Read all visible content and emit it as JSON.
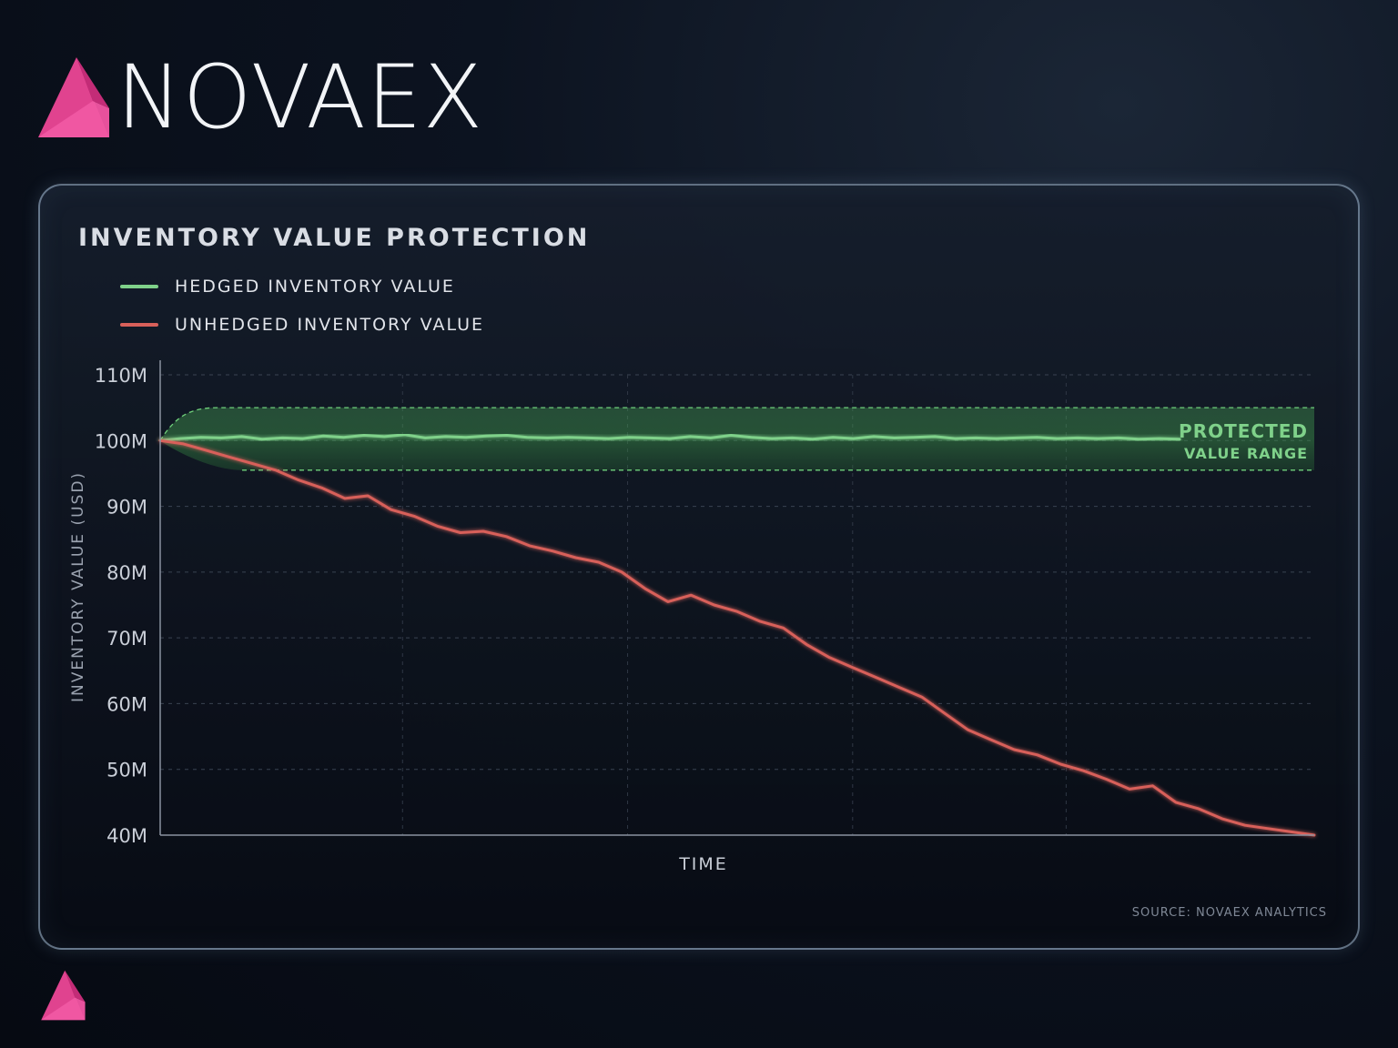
{
  "brand": {
    "name": "NOVAEX",
    "logo_icon": "pink-prism-icon"
  },
  "colors": {
    "hedged": "#7fd18a",
    "unhedged": "#d8605a",
    "band": "#5fb86a",
    "accent": "#e0438f"
  },
  "chart_data": {
    "type": "line",
    "title": "INVENTORY VALUE PROTECTION",
    "xlabel": "TIME",
    "ylabel": "INVENTORY VALUE (USD)",
    "ylim": [
      40,
      110
    ],
    "y_unit": "M",
    "yticks": [
      "110M",
      "100M",
      "90M",
      "80M",
      "70M",
      "60M",
      "50M",
      "40M"
    ],
    "grid": true,
    "legend_position": "top-left",
    "band": {
      "label_line1": "PROTECTED",
      "label_line2": "VALUE RANGE",
      "lower": 95.5,
      "upper": 105
    },
    "series": [
      {
        "name": "HEDGED INVENTORY VALUE",
        "x": [
          0,
          2,
          4,
          6,
          8,
          10,
          12,
          14,
          16,
          18,
          20,
          22,
          24,
          26,
          28,
          30,
          32,
          34,
          36,
          38,
          40,
          42,
          44,
          46,
          48,
          50,
          52,
          54,
          56,
          58,
          60,
          62,
          64,
          66,
          68,
          70,
          72,
          74,
          76,
          78,
          80,
          82,
          84,
          86,
          88,
          90,
          92,
          94,
          96,
          98,
          100
        ],
        "values": [
          100,
          100.3,
          100.5,
          100.4,
          100.6,
          100.2,
          100.4,
          100.3,
          100.7,
          100.5,
          100.8,
          100.6,
          100.9,
          100.4,
          100.6,
          100.5,
          100.7,
          100.8,
          100.5,
          100.4,
          100.5,
          100.4,
          100.3,
          100.5,
          100.4,
          100.3,
          100.6,
          100.4,
          100.8,
          100.5,
          100.3,
          100.4,
          100.2,
          100.5,
          100.3,
          100.6,
          100.4,
          100.5,
          100.6,
          100.3,
          100.4,
          100.3,
          100.4,
          100.5,
          100.3,
          100.4,
          100.3,
          100.4,
          100.2,
          100.3,
          100.2
        ]
      },
      {
        "name": "UNHEDGED INVENTORY VALUE",
        "x": [
          0,
          2,
          4,
          6,
          8,
          10,
          12,
          14,
          16,
          18,
          20,
          22,
          24,
          26,
          28,
          30,
          32,
          34,
          36,
          38,
          40,
          42,
          44,
          46,
          48,
          50,
          52,
          54,
          56,
          58,
          60,
          62,
          64,
          66,
          68,
          70,
          72,
          74,
          76,
          78,
          80,
          82,
          84,
          86,
          88,
          90,
          92,
          94,
          96,
          98,
          100
        ],
        "values": [
          100,
          99.5,
          98.5,
          97.5,
          96.5,
          95.5,
          94,
          92.8,
          91.2,
          91.6,
          89.5,
          88.5,
          87,
          86,
          86.2,
          85.4,
          84,
          83.2,
          82.2,
          81.5,
          80,
          77.5,
          75.5,
          76.5,
          75,
          74,
          72.5,
          71.5,
          69,
          67,
          65.5,
          64,
          62.5,
          61,
          58.5,
          56,
          54.5,
          53,
          52.2,
          50.8,
          49.8,
          48.5,
          47,
          47.5,
          45,
          44,
          42.5,
          41.5,
          41,
          40.5,
          40
        ]
      }
    ]
  },
  "source": "SOURCE: NOVAEX ANALYTICS"
}
